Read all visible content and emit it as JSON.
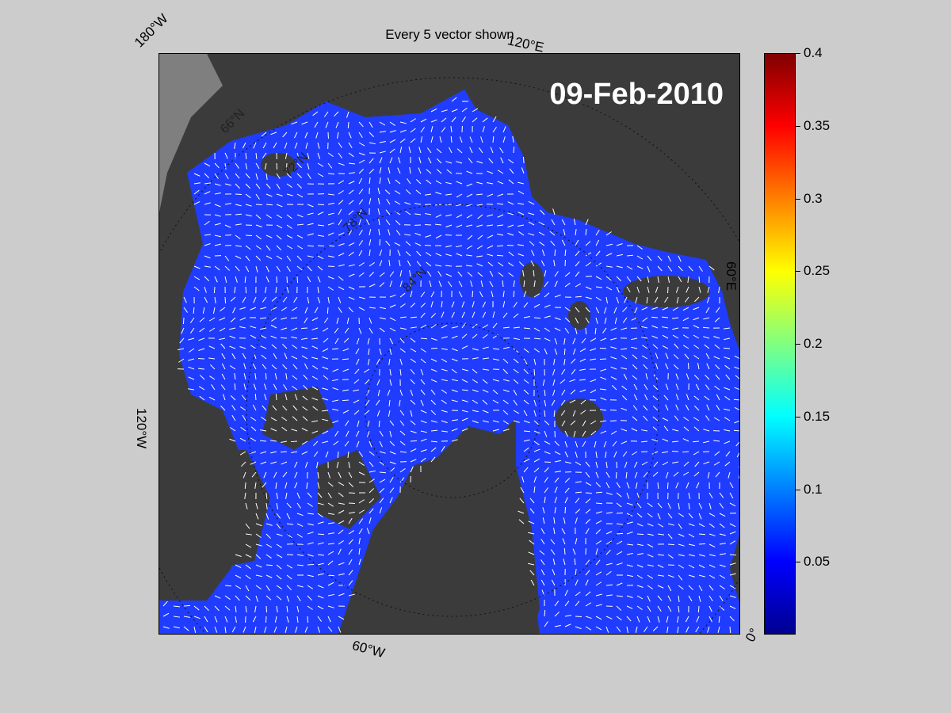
{
  "title": "Every 5 vector shown",
  "date": "09-Feb-2010",
  "grid_labels": {
    "lon_180w": "180°W",
    "lon_120e": "120°E",
    "lon_60e": "60°E",
    "lon_120w": "120°W",
    "lon_60w": "60°W",
    "lon_0": "0°"
  },
  "latitude_labels": [
    "66°N",
    "72°N",
    "78°N",
    "84°N"
  ],
  "colorbar": {
    "min": 0,
    "max": 0.4,
    "ticks": [
      0.05,
      0.1,
      0.15,
      0.2,
      0.25,
      0.3,
      0.35,
      0.4
    ],
    "tick_labels": [
      "0.05",
      "0.1",
      "0.15",
      "0.2",
      "0.25",
      "0.3",
      "0.35",
      "0.4"
    ],
    "colormap": "jet"
  },
  "colors": {
    "ocean": "#1f3cff",
    "land": "#3b3b3b",
    "land_edge": "#7a7a7a",
    "vector": "#ffffff",
    "background": "#cccccc"
  }
}
